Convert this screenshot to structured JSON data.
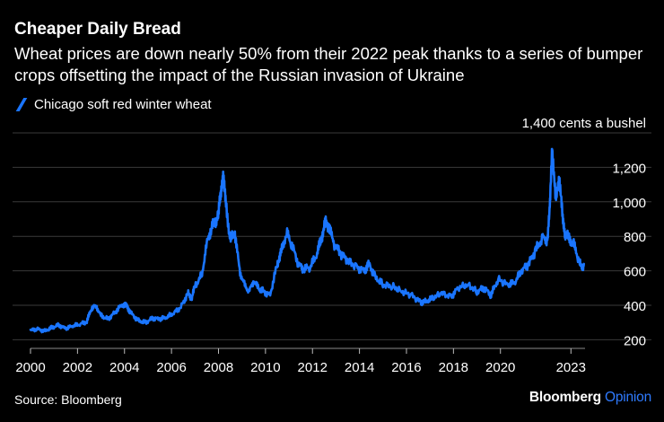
{
  "colors": {
    "line": "#1a75ff",
    "grid": "#3a3a3a",
    "brand_accent": "#2f7bff"
  },
  "source": "Source: Bloomberg",
  "brand": {
    "name": "Bloomberg",
    "suffix": "Opinion"
  },
  "chart_data": {
    "type": "line",
    "title": "Cheaper Daily Bread",
    "subtitle": "Wheat prices are down nearly 50% from their 2022 peak thanks to a series of bumper crops offsetting the impact of the Russian invasion of Ukraine",
    "legend": [
      {
        "name": "Chicago soft red winter wheat"
      }
    ],
    "y_unit_label": "1,400 cents a bushel",
    "ylabel": "cents a bushel",
    "xlabel": "",
    "xlim": [
      2000,
      2023.6
    ],
    "ylim": [
      150,
      1400
    ],
    "y_ticks": [
      200,
      400,
      600,
      800,
      1000,
      1200,
      1400
    ],
    "y_tick_labels": [
      "200",
      "400",
      "600",
      "800",
      "1,000",
      "1,200",
      "1,400"
    ],
    "x_ticks": [
      2000,
      2002,
      2004,
      2006,
      2008,
      2010,
      2012,
      2014,
      2016,
      2018,
      2020,
      2023
    ],
    "x_tick_labels": [
      "2000",
      "2002",
      "2004",
      "2006",
      "2008",
      "2010",
      "2012",
      "2014",
      "2016",
      "2018",
      "2020",
      "2023"
    ],
    "series": [
      {
        "name": "Chicago soft red winter wheat",
        "x": [
          2000.0,
          2000.3,
          2000.6,
          2000.9,
          2001.2,
          2001.5,
          2001.8,
          2002.1,
          2002.4,
          2002.6,
          2002.8,
          2003.0,
          2003.3,
          2003.6,
          2003.9,
          2004.1,
          2004.3,
          2004.6,
          2004.9,
          2005.2,
          2005.5,
          2005.8,
          2006.1,
          2006.4,
          2006.7,
          2006.85,
          2007.0,
          2007.3,
          2007.5,
          2007.7,
          2007.85,
          2008.0,
          2008.1,
          2008.2,
          2008.3,
          2008.5,
          2008.7,
          2008.9,
          2009.1,
          2009.3,
          2009.5,
          2009.7,
          2009.9,
          2010.2,
          2010.5,
          2010.65,
          2010.9,
          2011.1,
          2011.4,
          2011.6,
          2011.9,
          2012.2,
          2012.4,
          2012.55,
          2012.7,
          2012.9,
          2013.2,
          2013.5,
          2013.9,
          2014.2,
          2014.4,
          2014.7,
          2015.0,
          2015.4,
          2015.8,
          2016.2,
          2016.6,
          2016.8,
          2017.1,
          2017.5,
          2017.9,
          2018.2,
          2018.6,
          2019.0,
          2019.3,
          2019.6,
          2019.9,
          2020.3,
          2020.6,
          2020.9,
          2021.2,
          2021.5,
          2021.8,
          2022.0,
          2022.1,
          2022.2,
          2022.35,
          2022.5,
          2022.65,
          2022.75,
          2022.9,
          2023.1,
          2023.3,
          2023.45,
          2023.55
        ],
        "values": [
          255,
          262,
          250,
          270,
          285,
          265,
          280,
          290,
          305,
          385,
          395,
          340,
          320,
          360,
          405,
          395,
          350,
          310,
          300,
          325,
          320,
          330,
          355,
          390,
          470,
          440,
          510,
          580,
          760,
          850,
          880,
          930,
          1050,
          1170,
          1000,
          780,
          820,
          600,
          520,
          480,
          540,
          500,
          480,
          460,
          640,
          700,
          820,
          760,
          640,
          610,
          620,
          700,
          800,
          880,
          860,
          760,
          700,
          660,
          620,
          600,
          640,
          560,
          520,
          510,
          480,
          460,
          420,
          420,
          440,
          470,
          450,
          500,
          520,
          480,
          500,
          460,
          550,
          520,
          530,
          600,
          640,
          720,
          790,
          780,
          950,
          1330,
          1000,
          1150,
          900,
          820,
          790,
          760,
          680,
          610,
          640
        ]
      }
    ]
  }
}
